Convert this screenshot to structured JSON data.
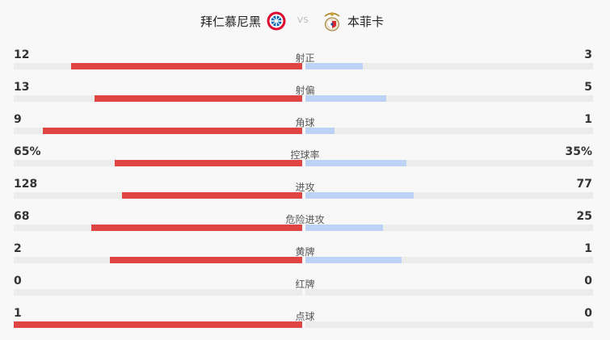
{
  "match": {
    "home_team": "拜仁慕尼黑",
    "away_team": "本菲卡",
    "vs_label": "VS",
    "home_logo_icon": "bayern-munich-crest-icon",
    "away_logo_icon": "benfica-crest-icon"
  },
  "colors": {
    "home_bar": "#e04545",
    "away_bar": "#bcd3f5",
    "track": "#ececec"
  },
  "stats": [
    {
      "label": "射正",
      "home": "12",
      "away": "3",
      "home_fraction": 0.8,
      "away_fraction": 0.2
    },
    {
      "label": "射偏",
      "home": "13",
      "away": "5",
      "home_fraction": 0.72,
      "away_fraction": 0.28
    },
    {
      "label": "角球",
      "home": "9",
      "away": "1",
      "home_fraction": 0.9,
      "away_fraction": 0.1
    },
    {
      "label": "控球率",
      "home": "65%",
      "away": "35%",
      "home_fraction": 0.65,
      "away_fraction": 0.35
    },
    {
      "label": "进攻",
      "home": "128",
      "away": "77",
      "home_fraction": 0.624,
      "away_fraction": 0.376
    },
    {
      "label": "危险进攻",
      "home": "68",
      "away": "25",
      "home_fraction": 0.731,
      "away_fraction": 0.269
    },
    {
      "label": "黄牌",
      "home": "2",
      "away": "1",
      "home_fraction": 0.667,
      "away_fraction": 0.333
    },
    {
      "label": "红牌",
      "home": "0",
      "away": "0",
      "home_fraction": 0,
      "away_fraction": 0
    },
    {
      "label": "点球",
      "home": "1",
      "away": "0",
      "home_fraction": 1.0,
      "away_fraction": 0
    }
  ]
}
